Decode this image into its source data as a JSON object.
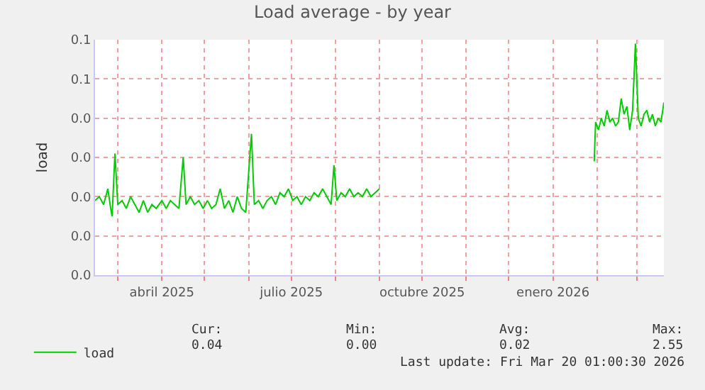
{
  "chart_data": {
    "type": "line",
    "title": "Load average - by year",
    "ylabel": "load",
    "x": [
      "2025-02-13",
      "2025-02-16",
      "2025-02-19",
      "2025-02-22",
      "2025-02-24",
      "2025-02-25",
      "2025-02-27",
      "2025-03-01",
      "2025-03-04",
      "2025-03-07",
      "2025-03-10",
      "2025-03-13",
      "2025-03-16",
      "2025-03-19",
      "2025-03-22",
      "2025-03-25",
      "2025-03-28",
      "2025-04-01",
      "2025-04-04",
      "2025-04-07",
      "2025-04-10",
      "2025-04-13",
      "2025-04-16",
      "2025-04-18",
      "2025-04-21",
      "2025-04-24",
      "2025-04-27",
      "2025-04-30",
      "2025-05-03",
      "2025-05-06",
      "2025-05-09",
      "2025-05-12",
      "2025-05-15",
      "2025-05-18",
      "2025-05-21",
      "2025-05-24",
      "2025-05-27",
      "2025-05-30",
      "2025-06-03",
      "2025-06-05",
      "2025-06-08",
      "2025-06-11",
      "2025-06-14",
      "2025-06-17",
      "2025-06-20",
      "2025-06-23",
      "2025-06-26",
      "2025-06-29",
      "2025-07-02",
      "2025-07-05",
      "2025-07-08",
      "2025-07-11",
      "2025-07-14",
      "2025-07-17",
      "2025-07-20",
      "2025-07-23",
      "2025-07-26",
      "2025-07-29",
      "2025-07-31",
      "2025-08-02",
      "2025-08-05",
      "2025-08-08",
      "2025-08-11",
      "2025-08-14",
      "2025-08-17",
      "2025-08-20",
      "2025-08-23",
      "2025-08-26",
      "2025-08-29",
      "2025-09-01",
      "2025-11-15",
      "2026-01-30",
      "2026-01-31",
      "2026-02-02",
      "2026-02-04",
      "2026-02-06",
      "2026-02-08",
      "2026-02-10",
      "2026-02-12",
      "2026-02-14",
      "2026-02-16",
      "2026-02-18",
      "2026-02-20",
      "2026-02-22",
      "2026-02-24",
      "2026-02-26",
      "2026-02-28",
      "2026-03-02",
      "2026-03-04",
      "2026-03-06",
      "2026-03-08",
      "2026-03-10",
      "2026-03-12",
      "2026-03-14",
      "2026-03-16",
      "2026-03-18",
      "2026-03-20"
    ],
    "series": [
      {
        "name": "load",
        "color": "#00cc00",
        "values": [
          0.019,
          0.02,
          0.018,
          0.022,
          0.017,
          0.015,
          0.031,
          0.018,
          0.019,
          0.017,
          0.02,
          0.018,
          0.016,
          0.019,
          0.016,
          0.018,
          0.017,
          0.019,
          0.017,
          0.019,
          0.018,
          0.017,
          0.03,
          0.018,
          0.02,
          0.018,
          0.019,
          0.017,
          0.019,
          0.017,
          0.018,
          0.022,
          0.017,
          0.019,
          0.016,
          0.02,
          0.017,
          0.016,
          0.036,
          0.018,
          0.019,
          0.017,
          0.019,
          0.02,
          0.018,
          0.021,
          0.02,
          0.022,
          0.019,
          0.02,
          0.018,
          0.02,
          0.019,
          0.021,
          0.02,
          0.022,
          0.02,
          0.018,
          0.028,
          0.019,
          0.021,
          0.02,
          0.022,
          0.02,
          0.021,
          0.02,
          0.022,
          0.02,
          0.021,
          0.022,
          null,
          0.029,
          0.039,
          0.037,
          0.04,
          0.038,
          0.042,
          0.039,
          0.04,
          0.038,
          0.039,
          0.045,
          0.041,
          0.043,
          0.037,
          0.042,
          0.059,
          0.04,
          0.038,
          0.041,
          0.042,
          0.039,
          0.041,
          0.038,
          0.04,
          0.039,
          0.044
        ]
      }
    ],
    "xlim": [
      "2025-02-13",
      "2026-03-20"
    ],
    "xticks": [
      {
        "value": "2025-03-01",
        "label": null
      },
      {
        "value": "2025-04-01",
        "label": "abril 2025"
      },
      {
        "value": "2025-05-01",
        "label": null
      },
      {
        "value": "2025-06-01",
        "label": null
      },
      {
        "value": "2025-07-01",
        "label": "julio 2025"
      },
      {
        "value": "2025-08-01",
        "label": null
      },
      {
        "value": "2025-09-01",
        "label": null
      },
      {
        "value": "2025-10-01",
        "label": "octubre 2025"
      },
      {
        "value": "2025-11-01",
        "label": null
      },
      {
        "value": "2025-12-01",
        "label": null
      },
      {
        "value": "2026-01-01",
        "label": "enero 2026"
      },
      {
        "value": "2026-02-01",
        "label": null
      },
      {
        "value": "2026-03-01",
        "label": null
      }
    ],
    "ylim": [
      0,
      0.06
    ],
    "yticks": [
      {
        "value": 0,
        "label": "0.0"
      },
      {
        "value": 0.01,
        "label": "0.0"
      },
      {
        "value": 0.02,
        "label": "0.0"
      },
      {
        "value": 0.03,
        "label": "0.0"
      },
      {
        "value": 0.04,
        "label": "0.0"
      },
      {
        "value": 0.05,
        "label": "0.1"
      },
      {
        "value": 0.06,
        "label": "0.1"
      }
    ],
    "grid": true,
    "legend": "bottom left",
    "marker": "none",
    "line_style": "solid",
    "annotations": [
      "Cur:",
      "Min:",
      "Avg:",
      "Max:",
      "0.04",
      "0.00",
      "0.02",
      "2.55",
      "Last update: Fri Mar 20 01:00:30 2026"
    ]
  }
}
